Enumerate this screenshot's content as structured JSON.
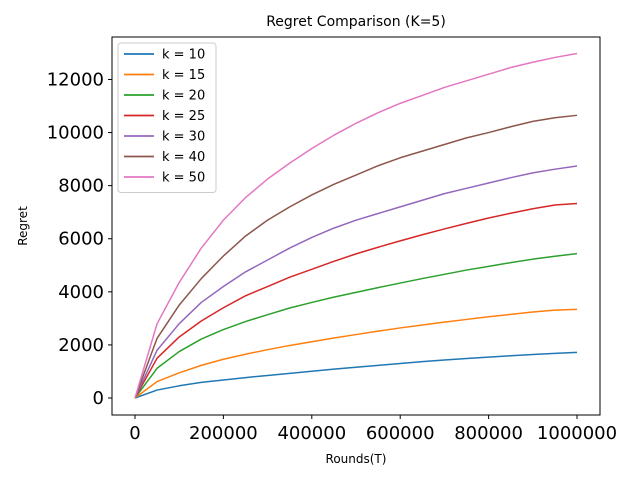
{
  "chart_data": {
    "type": "line",
    "title": "Regret Comparison (K=5)",
    "xlabel": "Rounds(T)",
    "ylabel": "Regret",
    "xlim": [
      -52000,
      1052000
    ],
    "ylim": [
      -640,
      13600
    ],
    "xticks": [
      0,
      200000,
      400000,
      600000,
      800000,
      1000000
    ],
    "yticks": [
      0,
      2000,
      4000,
      6000,
      8000,
      10000,
      12000
    ],
    "grid": false,
    "legend_position": "top-left",
    "x": [
      0,
      50000,
      100000,
      150000,
      200000,
      250000,
      300000,
      350000,
      400000,
      450000,
      500000,
      550000,
      600000,
      650000,
      700000,
      750000,
      800000,
      850000,
      900000,
      950000,
      1000000
    ],
    "series": [
      {
        "name": "k = 10",
        "color": "#1f77b4",
        "values": [
          0,
          300,
          460,
          590,
          680,
          770,
          850,
          930,
          1010,
          1090,
          1160,
          1230,
          1300,
          1370,
          1430,
          1490,
          1540,
          1590,
          1640,
          1680,
          1720
        ]
      },
      {
        "name": "k = 15",
        "color": "#ff7f0e",
        "values": [
          0,
          620,
          950,
          1230,
          1460,
          1650,
          1820,
          1980,
          2120,
          2260,
          2390,
          2520,
          2640,
          2750,
          2860,
          2960,
          3060,
          3150,
          3240,
          3310,
          3340
        ]
      },
      {
        "name": "k = 20",
        "color": "#2ca02c",
        "values": [
          0,
          1120,
          1750,
          2220,
          2580,
          2880,
          3140,
          3390,
          3600,
          3800,
          3980,
          4160,
          4330,
          4500,
          4660,
          4820,
          4960,
          5100,
          5230,
          5340,
          5440
        ]
      },
      {
        "name": "k = 25",
        "color": "#d62728",
        "values": [
          0,
          1500,
          2300,
          2900,
          3400,
          3850,
          4200,
          4550,
          4850,
          5150,
          5430,
          5680,
          5920,
          6150,
          6370,
          6580,
          6780,
          6960,
          7130,
          7270,
          7330
        ]
      },
      {
        "name": "k = 30",
        "color": "#9467bd",
        "values": [
          0,
          1800,
          2800,
          3600,
          4200,
          4750,
          5200,
          5650,
          6050,
          6400,
          6700,
          6950,
          7200,
          7450,
          7700,
          7900,
          8100,
          8300,
          8480,
          8620,
          8740
        ]
      },
      {
        "name": "k = 40",
        "color": "#8c564b",
        "values": [
          0,
          2250,
          3500,
          4500,
          5350,
          6100,
          6700,
          7200,
          7650,
          8050,
          8400,
          8750,
          9050,
          9300,
          9550,
          9800,
          10000,
          10220,
          10420,
          10560,
          10650
        ]
      },
      {
        "name": "k = 50",
        "color": "#e377c2",
        "values": [
          0,
          2800,
          4350,
          5650,
          6700,
          7550,
          8250,
          8850,
          9400,
          9900,
          10350,
          10750,
          11100,
          11400,
          11700,
          11950,
          12200,
          12450,
          12650,
          12830,
          12980
        ]
      }
    ]
  }
}
